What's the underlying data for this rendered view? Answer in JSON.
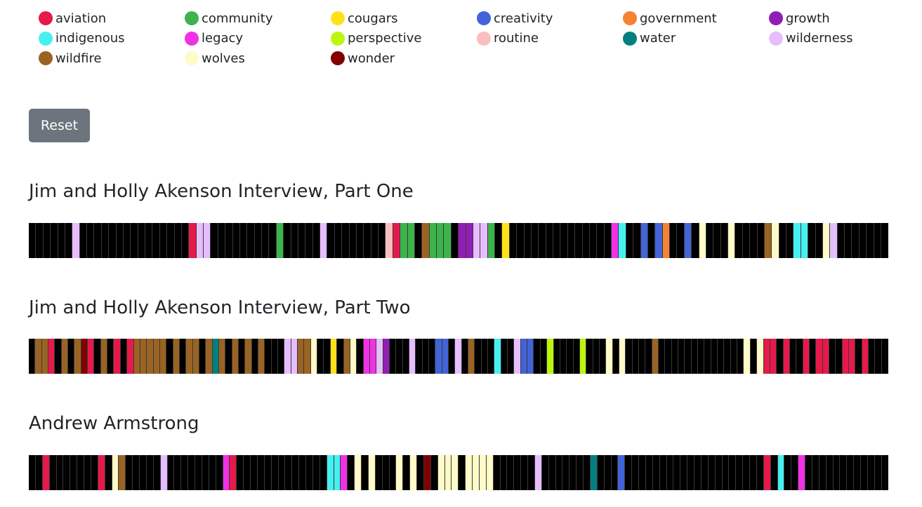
{
  "legend": [
    {
      "key": "aviation",
      "label": "aviation",
      "color": "#e6194b"
    },
    {
      "key": "community",
      "label": "community",
      "color": "#3cb44b"
    },
    {
      "key": "cougars",
      "label": "cougars",
      "color": "#ffe119"
    },
    {
      "key": "creativity",
      "label": "creativity",
      "color": "#4363d8"
    },
    {
      "key": "government",
      "label": "government",
      "color": "#f58231"
    },
    {
      "key": "growth",
      "label": "growth",
      "color": "#911eb4"
    },
    {
      "key": "indigenous",
      "label": "indigenous",
      "color": "#46f0f0"
    },
    {
      "key": "legacy",
      "label": "legacy",
      "color": "#f032e6"
    },
    {
      "key": "perspective",
      "label": "perspective",
      "color": "#bcf60c"
    },
    {
      "key": "routine",
      "label": "routine",
      "color": "#fabebe"
    },
    {
      "key": "water",
      "label": "water",
      "color": "#008080"
    },
    {
      "key": "wilderness",
      "label": "wilderness",
      "color": "#e6beff"
    },
    {
      "key": "wildfire",
      "label": "wildfire",
      "color": "#9a6324"
    },
    {
      "key": "wolves",
      "label": "wolves",
      "color": "#fffac8"
    },
    {
      "key": "wonder",
      "label": "wonder",
      "color": "#800000"
    }
  ],
  "reset_label": "Reset",
  "empty_color": "#000000",
  "interviews": [
    {
      "title": "Jim and Holly Akenson Interview, Part One",
      "segments": [
        null,
        null,
        null,
        null,
        null,
        null,
        "wilderness",
        null,
        null,
        null,
        null,
        null,
        null,
        null,
        null,
        null,
        null,
        null,
        null,
        null,
        null,
        null,
        "aviation",
        "wilderness",
        "wilderness",
        null,
        null,
        null,
        null,
        null,
        null,
        null,
        null,
        null,
        "community",
        null,
        null,
        null,
        null,
        null,
        "wilderness",
        null,
        null,
        null,
        null,
        null,
        null,
        null,
        null,
        "routine",
        "aviation",
        "community",
        "community",
        null,
        "wildfire",
        "community",
        "community",
        "community",
        null,
        "growth",
        "growth",
        "wilderness",
        "wilderness",
        "community",
        null,
        "cougars",
        null,
        null,
        null,
        null,
        null,
        null,
        null,
        null,
        null,
        null,
        null,
        null,
        null,
        null,
        "legacy",
        "indigenous",
        null,
        null,
        "creativity",
        null,
        "creativity",
        "government",
        null,
        null,
        "creativity",
        null,
        "wolves",
        null,
        null,
        null,
        "wolves",
        null,
        null,
        null,
        null,
        "wildfire",
        "wolves",
        null,
        null,
        "indigenous",
        "indigenous",
        null,
        null,
        "wolves",
        "wilderness",
        null,
        null,
        null,
        null,
        null,
        null,
        null
      ]
    },
    {
      "title": "Jim and Holly Akenson Interview, Part Two",
      "segments": [
        null,
        "wildfire",
        "wildfire",
        "aviation",
        null,
        "wildfire",
        null,
        "wildfire",
        "wonder",
        "aviation",
        null,
        "wildfire",
        null,
        "aviation",
        null,
        "aviation",
        "wildfire",
        "wildfire",
        "wildfire",
        "wildfire",
        "wildfire",
        null,
        "wildfire",
        null,
        "wildfire",
        "wildfire",
        null,
        "wildfire",
        "water",
        "wildfire",
        null,
        "wildfire",
        null,
        "wildfire",
        null,
        "wildfire",
        null,
        null,
        null,
        "wilderness",
        "wilderness",
        "wildfire",
        "wildfire",
        "wolves",
        null,
        null,
        "cougars",
        null,
        "wildfire",
        "wolves",
        null,
        "legacy",
        "legacy",
        "wilderness",
        "growth",
        null,
        null,
        null,
        "wilderness",
        null,
        null,
        null,
        "creativity",
        "creativity",
        null,
        "wilderness",
        null,
        "wildfire",
        null,
        null,
        null,
        "indigenous",
        null,
        null,
        "wilderness",
        "creativity",
        "creativity",
        null,
        null,
        "perspective",
        null,
        null,
        null,
        null,
        "perspective",
        null,
        null,
        null,
        "wolves",
        null,
        "wolves",
        null,
        null,
        null,
        null,
        "wildfire",
        null,
        null,
        null,
        null,
        null,
        null,
        null,
        null,
        null,
        null,
        null,
        null,
        null,
        "wolves",
        null,
        "wolves",
        "aviation",
        "aviation",
        null,
        "aviation",
        null,
        null,
        "aviation",
        null,
        "aviation",
        "aviation",
        null,
        null,
        "aviation",
        "aviation",
        null,
        "aviation",
        null,
        null,
        null
      ]
    },
    {
      "title": "Andrew Armstrong",
      "segments": [
        null,
        null,
        "aviation",
        null,
        null,
        null,
        null,
        null,
        null,
        null,
        "aviation",
        null,
        "wolves",
        "wildfire",
        null,
        null,
        null,
        null,
        null,
        "wilderness",
        null,
        null,
        null,
        null,
        null,
        null,
        null,
        null,
        "legacy",
        "aviation",
        null,
        null,
        null,
        null,
        null,
        null,
        null,
        null,
        null,
        null,
        null,
        null,
        null,
        "indigenous",
        "indigenous",
        "legacy",
        null,
        "wolves",
        null,
        "wolves",
        null,
        null,
        null,
        "wolves",
        null,
        "wolves",
        null,
        "wonder",
        null,
        "wolves",
        "wolves",
        "wolves",
        null,
        "wolves",
        "wolves",
        "wolves",
        "wolves",
        null,
        null,
        null,
        null,
        null,
        null,
        "wilderness",
        null,
        null,
        null,
        null,
        null,
        null,
        null,
        "water",
        null,
        null,
        null,
        "creativity",
        null,
        null,
        null,
        null,
        null,
        null,
        null,
        null,
        null,
        null,
        null,
        null,
        null,
        null,
        null,
        null,
        null,
        null,
        null,
        null,
        "aviation",
        null,
        "indigenous",
        null,
        null,
        "legacy",
        null,
        null,
        null,
        null,
        null,
        null,
        null,
        null,
        null,
        null,
        null,
        null
      ]
    }
  ]
}
